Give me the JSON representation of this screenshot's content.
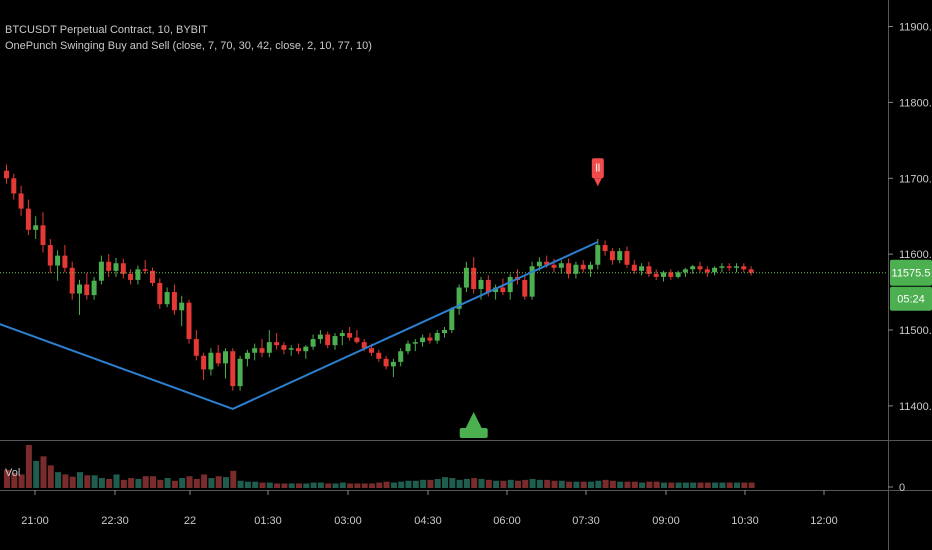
{
  "legend": {
    "symbol_line": "BTCUSDT Perpetual Contract, 10, BYBIT",
    "indicator_line": "OnePunch Swinging Buy and Sell (close, 7, 70, 30, 42, close, 2, 10, 77, 10)"
  },
  "volume_label": "Vol",
  "colors": {
    "background": "#000000",
    "up": "#4caf50",
    "down": "#e53935",
    "zigzag": "#2d7fd0",
    "price_line": "#6fbf4f",
    "sell_marker": "#f04a4a",
    "buy_marker": "#4caf50"
  },
  "price_tag": {
    "value": "11575.5",
    "countdown": "05:24"
  },
  "sell_marker_text": "ll",
  "chart_data": {
    "type": "candlestick",
    "y_axis": {
      "ticks": [
        "11900.0",
        "11800.0",
        "11700.0",
        "11600.0",
        "11500.0",
        "11400.0"
      ],
      "ylim": [
        11370,
        11935
      ]
    },
    "volume_axis": {
      "ticks": [
        "0"
      ]
    },
    "x_axis": {
      "ticks": [
        "21:00",
        "22:30",
        "22",
        "01:30",
        "03:00",
        "04:30",
        "06:00",
        "07:30",
        "09:00",
        "10:30",
        "12:00"
      ]
    },
    "last_price": 11575.5,
    "zigzag": [
      {
        "bar": -1,
        "price": 11508
      },
      {
        "bar": 31,
        "price": 11396
      },
      {
        "bar": 81,
        "price": 11616
      }
    ],
    "markers": [
      {
        "type": "sell",
        "bar": 81,
        "price": 11700
      },
      {
        "type": "buy",
        "bar": 64,
        "price": 11400
      }
    ],
    "candles": [
      [
        11710,
        11718,
        11693,
        11700
      ],
      [
        11700,
        11706,
        11672,
        11680
      ],
      [
        11680,
        11690,
        11650,
        11660
      ],
      [
        11660,
        11672,
        11625,
        11632
      ],
      [
        11632,
        11650,
        11620,
        11638
      ],
      [
        11638,
        11655,
        11602,
        11612
      ],
      [
        11612,
        11620,
        11575,
        11585
      ],
      [
        11585,
        11605,
        11565,
        11598
      ],
      [
        11598,
        11612,
        11576,
        11582
      ],
      [
        11582,
        11590,
        11540,
        11548
      ],
      [
        11548,
        11566,
        11520,
        11560
      ],
      [
        11560,
        11575,
        11540,
        11546
      ],
      [
        11546,
        11570,
        11540,
        11565
      ],
      [
        11565,
        11598,
        11560,
        11590
      ],
      [
        11590,
        11600,
        11570,
        11578
      ],
      [
        11578,
        11595,
        11570,
        11588
      ],
      [
        11588,
        11594,
        11568,
        11574
      ],
      [
        11574,
        11580,
        11560,
        11566
      ],
      [
        11566,
        11585,
        11560,
        11580
      ],
      [
        11580,
        11592,
        11574,
        11578
      ],
      [
        11578,
        11582,
        11558,
        11562
      ],
      [
        11562,
        11568,
        11528,
        11534
      ],
      [
        11534,
        11556,
        11530,
        11550
      ],
      [
        11550,
        11560,
        11520,
        11526
      ],
      [
        11526,
        11545,
        11505,
        11536
      ],
      [
        11536,
        11540,
        11482,
        11488
      ],
      [
        11488,
        11500,
        11460,
        11466
      ],
      [
        11466,
        11470,
        11434,
        11448
      ],
      [
        11448,
        11476,
        11440,
        11470
      ],
      [
        11470,
        11480,
        11452,
        11456
      ],
      [
        11456,
        11476,
        11436,
        11472
      ],
      [
        11472,
        11476,
        11420,
        11426
      ],
      [
        11426,
        11466,
        11420,
        11462
      ],
      [
        11462,
        11474,
        11452,
        11470
      ],
      [
        11470,
        11482,
        11460,
        11476
      ],
      [
        11476,
        11488,
        11464,
        11470
      ],
      [
        11470,
        11500,
        11464,
        11484
      ],
      [
        11484,
        11496,
        11474,
        11480
      ],
      [
        11480,
        11484,
        11468,
        11474
      ],
      [
        11474,
        11480,
        11466,
        11476
      ],
      [
        11476,
        11482,
        11468,
        11472
      ],
      [
        11472,
        11480,
        11462,
        11478
      ],
      [
        11478,
        11494,
        11474,
        11488
      ],
      [
        11488,
        11500,
        11482,
        11494
      ],
      [
        11494,
        11498,
        11476,
        11480
      ],
      [
        11480,
        11496,
        11474,
        11492
      ],
      [
        11492,
        11500,
        11480,
        11496
      ],
      [
        11496,
        11504,
        11486,
        11490
      ],
      [
        11490,
        11500,
        11482,
        11484
      ],
      [
        11484,
        11488,
        11472,
        11476
      ],
      [
        11476,
        11482,
        11466,
        11470
      ],
      [
        11470,
        11474,
        11458,
        11462
      ],
      [
        11462,
        11466,
        11448,
        11452
      ],
      [
        11452,
        11462,
        11438,
        11458
      ],
      [
        11458,
        11476,
        11452,
        11472
      ],
      [
        11472,
        11486,
        11468,
        11482
      ],
      [
        11482,
        11488,
        11472,
        11484
      ],
      [
        11484,
        11494,
        11478,
        11490
      ],
      [
        11490,
        11496,
        11482,
        11486
      ],
      [
        11486,
        11500,
        11482,
        11496
      ],
      [
        11496,
        11504,
        11490,
        11500
      ],
      [
        11500,
        11530,
        11496,
        11528
      ],
      [
        11528,
        11560,
        11520,
        11556
      ],
      [
        11556,
        11590,
        11550,
        11582
      ],
      [
        11582,
        11596,
        11548,
        11554
      ],
      [
        11554,
        11570,
        11540,
        11566
      ],
      [
        11566,
        11572,
        11544,
        11550
      ],
      [
        11550,
        11560,
        11540,
        11556
      ],
      [
        11556,
        11568,
        11546,
        11550
      ],
      [
        11550,
        11574,
        11540,
        11570
      ],
      [
        11570,
        11580,
        11560,
        11566
      ],
      [
        11566,
        11572,
        11540,
        11544
      ],
      [
        11544,
        11590,
        11540,
        11584
      ],
      [
        11584,
        11596,
        11578,
        11590
      ],
      [
        11590,
        11598,
        11582,
        11586
      ],
      [
        11586,
        11594,
        11576,
        11582
      ],
      [
        11582,
        11592,
        11574,
        11588
      ],
      [
        11588,
        11594,
        11568,
        11574
      ],
      [
        11574,
        11590,
        11568,
        11586
      ],
      [
        11586,
        11592,
        11576,
        11580
      ],
      [
        11580,
        11590,
        11570,
        11586
      ],
      [
        11586,
        11620,
        11580,
        11612
      ],
      [
        11612,
        11618,
        11598,
        11604
      ],
      [
        11604,
        11608,
        11586,
        11592
      ],
      [
        11592,
        11608,
        11588,
        11604
      ],
      [
        11604,
        11610,
        11582,
        11586
      ],
      [
        11586,
        11592,
        11574,
        11578
      ],
      [
        11578,
        11588,
        11572,
        11584
      ],
      [
        11584,
        11590,
        11570,
        11574
      ],
      [
        11574,
        11580,
        11566,
        11570
      ],
      [
        11570,
        11578,
        11564,
        11576
      ],
      [
        11576,
        11580,
        11566,
        11570
      ],
      [
        11570,
        11578,
        11568,
        11576
      ],
      [
        11576,
        11582,
        11570,
        11580
      ],
      [
        11580,
        11586,
        11574,
        11584
      ],
      [
        11584,
        11590,
        11576,
        11580
      ],
      [
        11580,
        11584,
        11570,
        11576
      ],
      [
        11576,
        11584,
        11572,
        11582
      ],
      [
        11582,
        11588,
        11576,
        11584
      ],
      [
        11584,
        11588,
        11578,
        11582
      ],
      [
        11582,
        11588,
        11576,
        11584
      ],
      [
        11584,
        11588,
        11576,
        11580
      ],
      [
        11580,
        11584,
        11572,
        11575.5
      ]
    ],
    "volume": [
      40,
      33,
      30,
      95,
      60,
      70,
      50,
      35,
      30,
      25,
      35,
      28,
      28,
      22,
      20,
      30,
      18,
      22,
      20,
      26,
      26,
      18,
      22,
      16,
      22,
      26,
      20,
      30,
      22,
      26,
      24,
      38,
      16,
      14,
      14,
      12,
      12,
      10,
      10,
      10,
      10,
      10,
      12,
      12,
      10,
      10,
      12,
      10,
      10,
      10,
      10,
      12,
      14,
      12,
      14,
      16,
      16,
      18,
      18,
      20,
      24,
      22,
      18,
      20,
      22,
      20,
      18,
      16,
      16,
      18,
      16,
      18,
      20,
      18,
      18,
      16,
      16,
      14,
      14,
      14,
      14,
      16,
      18,
      16,
      14,
      14,
      14,
      12,
      14,
      14,
      12,
      12,
      12,
      12,
      12,
      12,
      12,
      12,
      12,
      12,
      12,
      12,
      12
    ]
  }
}
